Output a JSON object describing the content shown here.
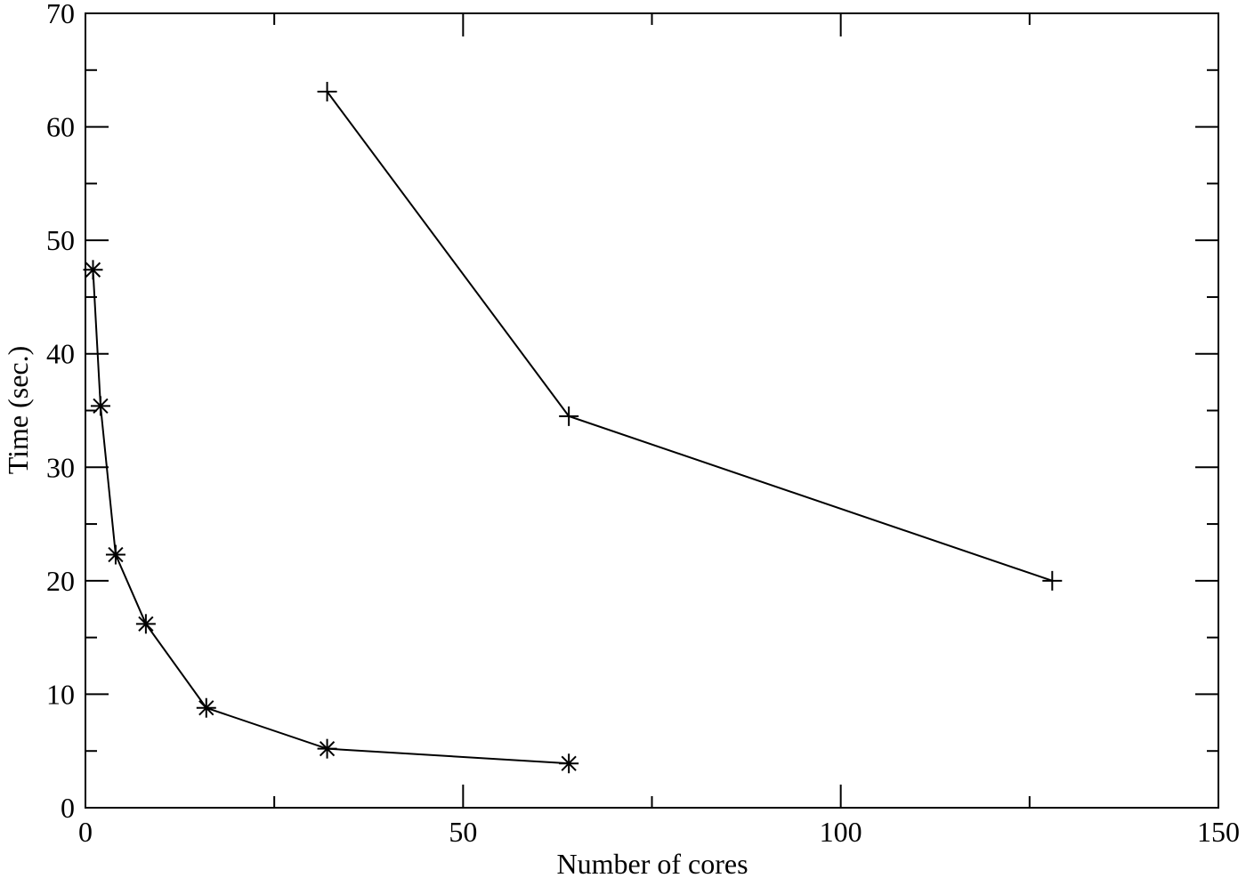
{
  "chart_data": {
    "type": "line",
    "title": "",
    "xlabel": "Number of cores",
    "ylabel": "Time (sec.)",
    "xlim": [
      0,
      150
    ],
    "ylim": [
      0,
      70
    ],
    "xticks": [
      0,
      50,
      100,
      150
    ],
    "xticks_minor": [
      25,
      75,
      125
    ],
    "yticks": [
      0,
      10,
      20,
      30,
      40,
      50,
      60,
      70
    ],
    "yticks_minor": [
      5,
      15,
      25,
      35,
      45,
      55,
      65
    ],
    "grid": false,
    "legend": "none",
    "series": [
      {
        "marker": "asterisk",
        "color": "#000000",
        "points": [
          {
            "x": 1,
            "y": 47.4
          },
          {
            "x": 2,
            "y": 35.4
          },
          {
            "x": 4,
            "y": 22.3
          },
          {
            "x": 8,
            "y": 16.2
          },
          {
            "x": 16,
            "y": 8.8
          },
          {
            "x": 32,
            "y": 5.2
          },
          {
            "x": 64,
            "y": 3.9
          }
        ]
      },
      {
        "marker": "plus",
        "color": "#000000",
        "points": [
          {
            "x": 32,
            "y": 63.1
          },
          {
            "x": 64,
            "y": 34.5
          },
          {
            "x": 128,
            "y": 20.0
          }
        ]
      }
    ]
  }
}
